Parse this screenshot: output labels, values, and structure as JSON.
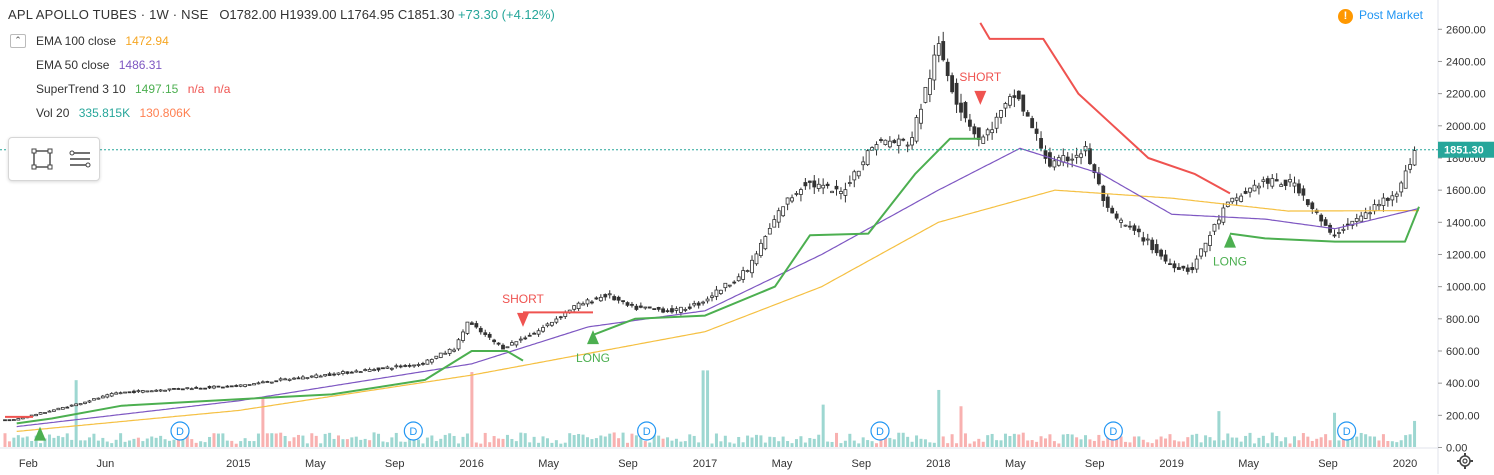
{
  "header": {
    "symbol": "APL APOLLO TUBES · 1W · NSE",
    "open": "O1782.00",
    "high": "H1939.00",
    "low": "L1764.95",
    "close": "C1851.30",
    "change": "+73.30 (+4.12%)"
  },
  "indicators": {
    "ema100": {
      "label": "EMA 100 close",
      "value": "1472.94"
    },
    "ema50": {
      "label": "EMA 50 close",
      "value": "1486.31"
    },
    "supertrend": {
      "label": "SuperTrend 3 10",
      "value": "1497.15",
      "na1": "n/a",
      "na2": "n/a"
    },
    "vol": {
      "label": "Vol 20",
      "value1": "335.815K",
      "value2": "130.806K"
    }
  },
  "post_market": "Post Market",
  "post_icon": "exclamation-icon",
  "icons": [
    "collapse-icon",
    "rectangle-tool-icon",
    "menu-lines-icon",
    "gear-icon"
  ],
  "colors": {
    "up": "#26a69a",
    "down": "#ef5350",
    "ema100": "#f5c042",
    "ema50": "#7e57c2",
    "st_up": "#4caf50",
    "st_down": "#ef5350",
    "price_line": "#26a69a"
  },
  "chart_data": {
    "type": "candlestick",
    "title": "APL APOLLO TUBES · 1W · NSE",
    "ylim": [
      0,
      2700
    ],
    "y_ticks": [
      0,
      200,
      400,
      600,
      800,
      1000,
      1200,
      1400,
      1600,
      1800,
      2000,
      2200,
      2400,
      2600
    ],
    "y_tick_labels": [
      "0.00",
      "200.00",
      "400.00",
      "600.00",
      "800.00",
      "1000.00",
      "1200.00",
      "1400.00",
      "1600.00",
      "1800.00",
      "2000.00",
      "2200.00",
      "2400.00",
      "2600.00"
    ],
    "x_labels": [
      "Feb",
      "Jun",
      "2015",
      "May",
      "Sep",
      "2016",
      "May",
      "Sep",
      "2017",
      "May",
      "Sep",
      "2018",
      "May",
      "Sep",
      "2019",
      "May",
      "Sep",
      "2020"
    ],
    "x_label_times": [
      2014.1,
      2014.43,
      2015.0,
      2015.33,
      2015.67,
      2016.0,
      2016.33,
      2016.67,
      2017.0,
      2017.33,
      2017.67,
      2018.0,
      2018.33,
      2018.67,
      2019.0,
      2019.33,
      2019.67,
      2020.0
    ],
    "x_range": [
      2014.0,
      2020.12
    ],
    "last_price": "1851.30",
    "last_value": 1851.3,
    "price_keypoints": [
      [
        2014.05,
        170
      ],
      [
        2014.3,
        260
      ],
      [
        2014.5,
        340
      ],
      [
        2014.8,
        370
      ],
      [
        2015.0,
        380
      ],
      [
        2015.2,
        420
      ],
      [
        2015.5,
        470
      ],
      [
        2015.8,
        520
      ],
      [
        2015.95,
        620
      ],
      [
        2016.0,
        780
      ],
      [
        2016.15,
        620
      ],
      [
        2016.3,
        720
      ],
      [
        2016.45,
        870
      ],
      [
        2016.6,
        950
      ],
      [
        2016.7,
        870
      ],
      [
        2016.9,
        850
      ],
      [
        2017.0,
        900
      ],
      [
        2017.2,
        1100
      ],
      [
        2017.35,
        1500
      ],
      [
        2017.45,
        1650
      ],
      [
        2017.6,
        1580
      ],
      [
        2017.75,
        1900
      ],
      [
        2017.9,
        1900
      ],
      [
        2018.02,
        2500
      ],
      [
        2018.1,
        2150
      ],
      [
        2018.2,
        1900
      ],
      [
        2018.35,
        2200
      ],
      [
        2018.5,
        1750
      ],
      [
        2018.65,
        1850
      ],
      [
        2018.75,
        1450
      ],
      [
        2018.9,
        1300
      ],
      [
        2019.0,
        1150
      ],
      [
        2019.1,
        1100
      ],
      [
        2019.25,
        1500
      ],
      [
        2019.4,
        1650
      ],
      [
        2019.55,
        1640
      ],
      [
        2019.7,
        1320
      ],
      [
        2019.85,
        1450
      ],
      [
        2020.0,
        1620
      ],
      [
        2020.06,
        1851
      ]
    ],
    "ema100_keypoints": [
      [
        2014.05,
        100
      ],
      [
        2015.0,
        230
      ],
      [
        2016.0,
        450
      ],
      [
        2017.0,
        720
      ],
      [
        2017.5,
        1000
      ],
      [
        2018.0,
        1400
      ],
      [
        2018.5,
        1600
      ],
      [
        2019.0,
        1550
      ],
      [
        2019.5,
        1470
      ],
      [
        2020.06,
        1473
      ]
    ],
    "ema50_keypoints": [
      [
        2014.05,
        130
      ],
      [
        2015.0,
        290
      ],
      [
        2016.0,
        520
      ],
      [
        2016.5,
        750
      ],
      [
        2017.0,
        850
      ],
      [
        2017.5,
        1200
      ],
      [
        2018.0,
        1600
      ],
      [
        2018.35,
        1860
      ],
      [
        2018.7,
        1700
      ],
      [
        2019.0,
        1450
      ],
      [
        2019.4,
        1420
      ],
      [
        2019.7,
        1360
      ],
      [
        2020.06,
        1486
      ]
    ],
    "supertrend_up": [
      [
        [
          2014.05,
          150
        ],
        [
          2014.2,
          180
        ],
        [
          2014.5,
          260
        ],
        [
          2015.0,
          300
        ],
        [
          2015.4,
          330
        ],
        [
          2015.8,
          420
        ],
        [
          2016.0,
          600
        ],
        [
          2016.15,
          600
        ],
        [
          2016.22,
          540
        ]
      ],
      [
        [
          2016.52,
          700
        ],
        [
          2016.7,
          800
        ],
        [
          2017.0,
          820
        ],
        [
          2017.3,
          1000
        ],
        [
          2017.45,
          1320
        ],
        [
          2017.7,
          1330
        ],
        [
          2017.9,
          1700
        ],
        [
          2018.05,
          1920
        ],
        [
          2018.18,
          1920
        ]
      ],
      [
        [
          2019.25,
          1330
        ],
        [
          2019.4,
          1300
        ],
        [
          2019.7,
          1280
        ],
        [
          2020.0,
          1280
        ],
        [
          2020.06,
          1497
        ]
      ]
    ],
    "supertrend_down": [
      [
        [
          2014.0,
          190
        ],
        [
          2014.12,
          190
        ]
      ],
      [
        [
          2016.22,
          840
        ],
        [
          2016.52,
          840
        ]
      ],
      [
        [
          2018.18,
          2640
        ],
        [
          2018.22,
          2540
        ],
        [
          2018.45,
          2540
        ],
        [
          2018.6,
          2200
        ],
        [
          2018.75,
          2000
        ],
        [
          2018.9,
          1800
        ],
        [
          2019.1,
          1700
        ],
        [
          2019.25,
          1580
        ]
      ]
    ],
    "signals": [
      {
        "type": "long",
        "label": "",
        "t": 2014.15,
        "v": 80
      },
      {
        "type": "short",
        "label": "SHORT",
        "t": 2016.22,
        "v": 800
      },
      {
        "type": "long",
        "label": "LONG",
        "t": 2016.52,
        "v": 680
      },
      {
        "type": "short",
        "label": "SHORT",
        "t": 2018.18,
        "v": 2180
      },
      {
        "type": "long",
        "label": "LONG",
        "t": 2019.25,
        "v": 1280
      }
    ],
    "dividends": [
      2014.75,
      2015.75,
      2016.75,
      2017.75,
      2018.75,
      2019.75
    ],
    "dividend_label": "D",
    "volume_unit": "K",
    "volume_peaks": [
      [
        2014.3,
        410
      ],
      [
        2015.1,
        300
      ],
      [
        2016.0,
        460
      ],
      [
        2017.0,
        470
      ],
      [
        2017.5,
        260
      ],
      [
        2018.0,
        350
      ],
      [
        2018.1,
        250
      ],
      [
        2019.2,
        220
      ],
      [
        2019.7,
        210
      ],
      [
        2020.05,
        160
      ]
    ]
  }
}
